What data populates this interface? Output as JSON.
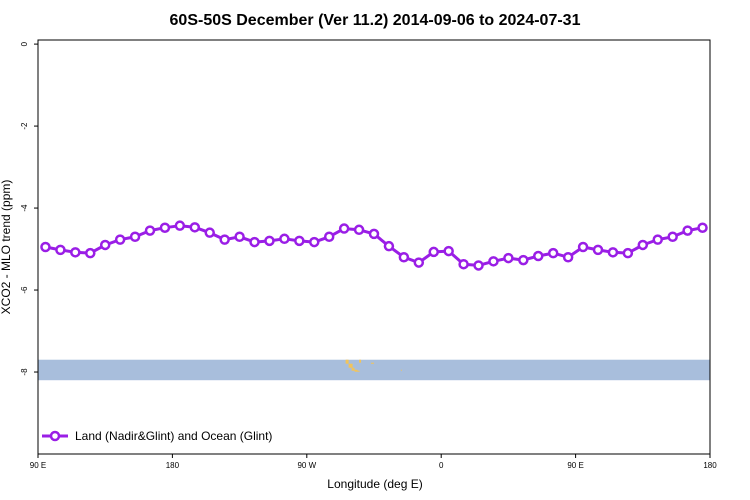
{
  "chart_data": {
    "type": "line",
    "title": "60S-50S December (Ver 11.2)   2014-09-06 to 2024-07-31",
    "xlabel": "Longitude (deg E)",
    "ylabel": "XCO2 - MLO trend (ppm)",
    "x_ticks": [
      {
        "value": 90,
        "label": "90 E"
      },
      {
        "value": 180,
        "label": "180"
      },
      {
        "value": 270,
        "label": "90 W"
      },
      {
        "value": 360,
        "label": "0"
      },
      {
        "value": 450,
        "label": "90 E"
      },
      {
        "value": 540,
        "label": "180"
      }
    ],
    "y_ticks": [
      {
        "value": 0,
        "label": "0"
      },
      {
        "value": -2,
        "label": "-2"
      },
      {
        "value": -4,
        "label": "-4"
      },
      {
        "value": -6,
        "label": "-6"
      },
      {
        "value": -8,
        "label": "-8"
      }
    ],
    "xlim": [
      90,
      540
    ],
    "ylim": [
      -10,
      0.1
    ],
    "legend_position": "bottom-left",
    "series": [
      {
        "name": "Land (Nadir&Glint) and Ocean (Glint)",
        "color": "#9A1EE6",
        "x": [
          95,
          105,
          115,
          125,
          135,
          145,
          155,
          165,
          175,
          185,
          195,
          205,
          215,
          225,
          235,
          245,
          255,
          265,
          275,
          285,
          295,
          305,
          315,
          325,
          335,
          345,
          355,
          365,
          375,
          385,
          395,
          405,
          415,
          425,
          435,
          445,
          455,
          465,
          475,
          485,
          495,
          505,
          515,
          525,
          535
        ],
        "values": [
          -4.95,
          -5.02,
          -5.08,
          -5.1,
          -4.9,
          -4.77,
          -4.7,
          -4.55,
          -4.48,
          -4.43,
          -4.47,
          -4.6,
          -4.77,
          -4.7,
          -4.83,
          -4.8,
          -4.75,
          -4.8,
          -4.83,
          -4.7,
          -4.5,
          -4.53,
          -4.63,
          -4.93,
          -5.2,
          -5.33,
          -5.07,
          -5.05,
          -5.37,
          -5.4,
          -5.3,
          -5.22,
          -5.27,
          -5.17,
          -5.1,
          -5.2,
          -4.95,
          -5.02,
          -5.08,
          -5.1,
          -4.9,
          -4.77,
          -4.7,
          -4.55,
          -4.48
        ]
      }
    ]
  },
  "map_strip": {
    "ocean_color": "#A8BEDC",
    "land_color": "#F2C45A",
    "y_range": [
      -8.2,
      -7.7
    ]
  }
}
